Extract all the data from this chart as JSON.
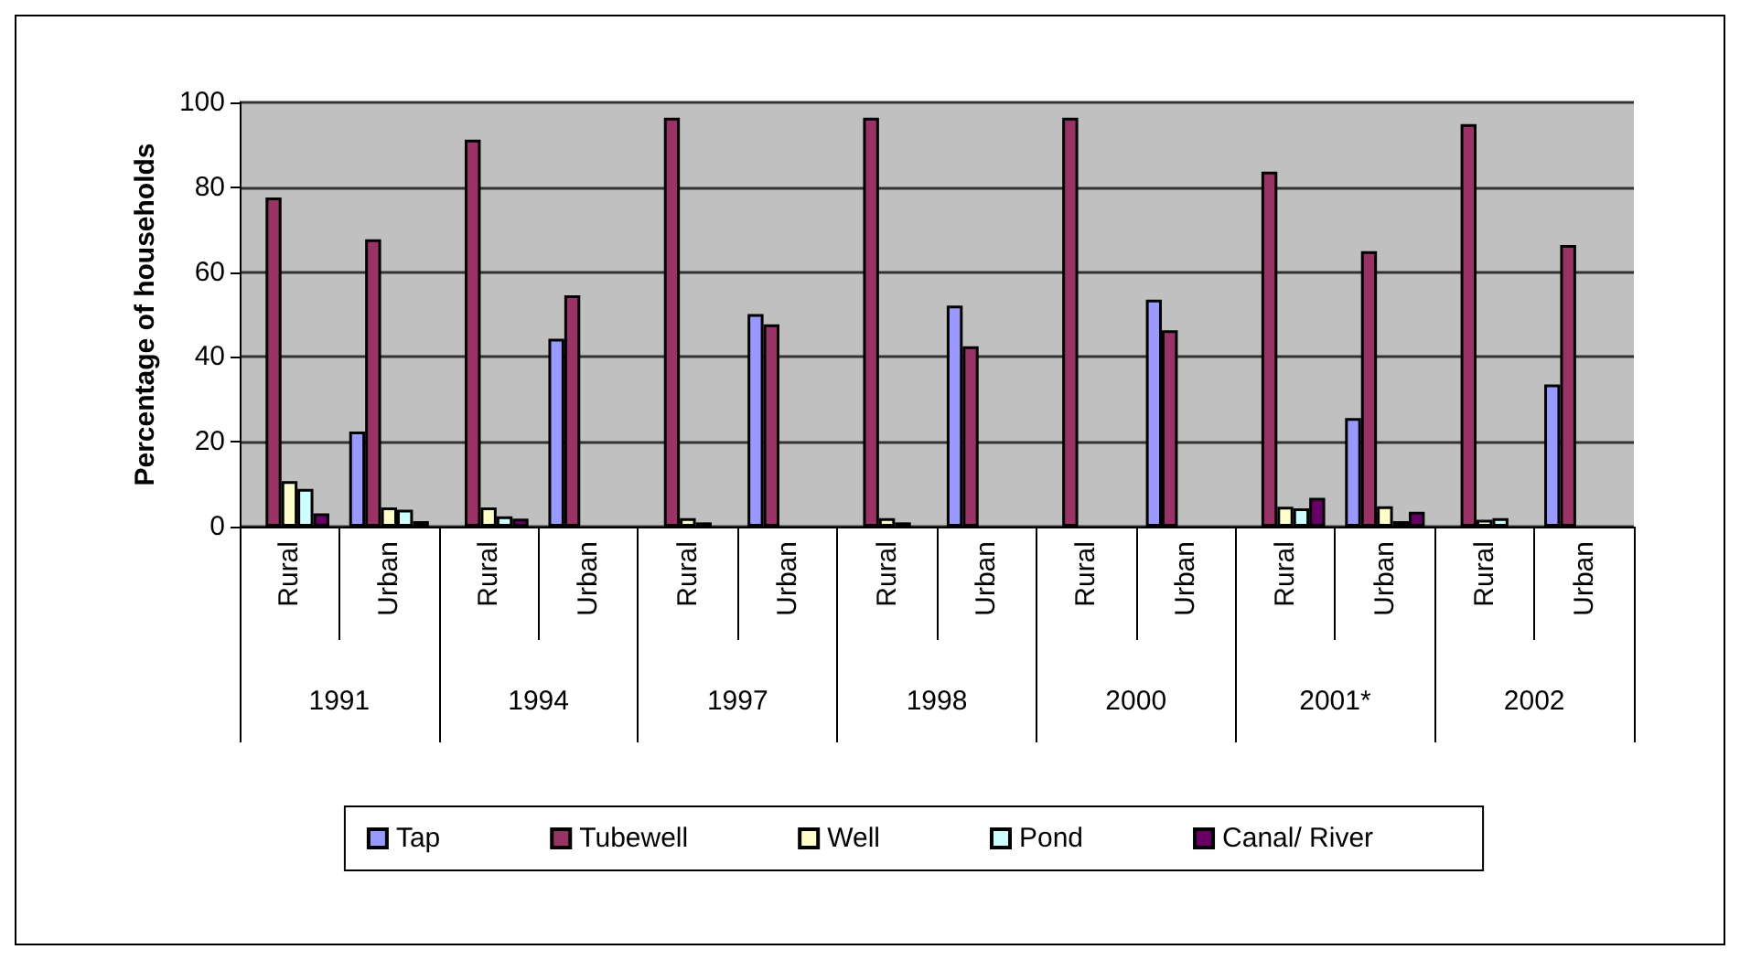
{
  "chart_data": {
    "type": "bar",
    "ylabel": "Percentage of households",
    "categories": [
      "Rural",
      "Urban",
      "Rural",
      "Urban",
      "Rural",
      "Urban",
      "Rural",
      "Urban",
      "Rural",
      "Urban",
      "Rural",
      "Urban",
      "Rural",
      "Urban"
    ],
    "annotations": [
      "1991",
      "1994",
      "1997",
      "1998",
      "2000",
      "2001*",
      "2002"
    ],
    "series": [
      {
        "name": "Tap",
        "color": "#9999ff",
        "values": [
          0,
          22.4,
          0,
          44.3,
          0,
          50.1,
          0,
          52.1,
          0,
          53.5,
          0,
          25.6,
          0,
          33.5
        ]
      },
      {
        "name": "Tubewell",
        "color": "#993366",
        "values": [
          77.6,
          67.7,
          91.2,
          54.5,
          96.4,
          47.7,
          96.4,
          42.5,
          96.4,
          46.3,
          83.7,
          64.9,
          94.9,
          66.4
        ]
      },
      {
        "name": "Well",
        "color": "#ffffcc",
        "values": [
          10.7,
          4.5,
          4.5,
          0,
          2,
          0,
          2,
          0,
          0,
          0,
          4.7,
          4.8,
          1.6,
          0
        ]
      },
      {
        "name": "Pond",
        "color": "#ccffff",
        "values": [
          8.9,
          4,
          2.4,
          0,
          1,
          0,
          1,
          0,
          0,
          0,
          4.3,
          1.3,
          2,
          0
        ]
      },
      {
        "name": "Canal/ River",
        "color": "#660066",
        "values": [
          3.1,
          1.3,
          1.9,
          0,
          0,
          0,
          0,
          0,
          0,
          0,
          6.8,
          3.5,
          0,
          0
        ]
      }
    ],
    "ylim": [
      0,
      100
    ],
    "yticks": [
      0,
      20,
      40,
      60,
      80,
      100
    ],
    "grid": "y",
    "legend": "bottom"
  }
}
